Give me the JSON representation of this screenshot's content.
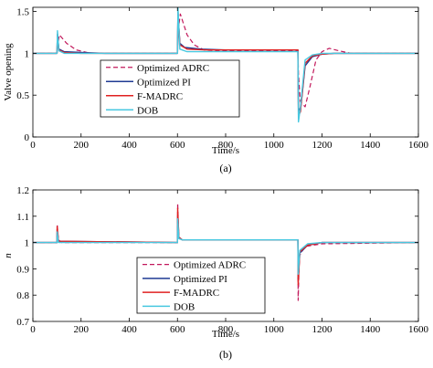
{
  "chart_data": [
    {
      "type": "line",
      "caption": "(a)",
      "xlabel": "Time/s",
      "ylabel": "Valve opening",
      "xlim": [
        0,
        1600
      ],
      "ylim": [
        0,
        1.55
      ],
      "xticks": [
        0,
        200,
        400,
        600,
        800,
        1000,
        1200,
        1400,
        1600
      ],
      "yticks": [
        0,
        0.5,
        1,
        1.5
      ],
      "ytick_labels": [
        "0",
        "0.5",
        "1",
        "1.5"
      ],
      "legend_position": "center",
      "series": [
        {
          "name": "Optimized ADRC",
          "color": "#c2185b",
          "dash": "5,3",
          "points": [
            [
              0,
              1
            ],
            [
              100,
              1
            ],
            [
              102,
              1.08
            ],
            [
              110,
              1.22
            ],
            [
              140,
              1.12
            ],
            [
              180,
              1.04
            ],
            [
              240,
              1.0
            ],
            [
              300,
              1.0
            ],
            [
              600,
              1.0
            ],
            [
              602,
              1.25
            ],
            [
              612,
              1.47
            ],
            [
              640,
              1.22
            ],
            [
              670,
              1.1
            ],
            [
              710,
              1.04
            ],
            [
              760,
              1.03
            ],
            [
              800,
              1.03
            ],
            [
              1000,
              1.03
            ],
            [
              1100,
              1.03
            ],
            [
              1102,
              0.75
            ],
            [
              1110,
              0.42
            ],
            [
              1130,
              0.36
            ],
            [
              1150,
              0.6
            ],
            [
              1175,
              0.92
            ],
            [
              1200,
              1.02
            ],
            [
              1230,
              1.06
            ],
            [
              1270,
              1.03
            ],
            [
              1320,
              1.0
            ],
            [
              1600,
              1.0
            ]
          ]
        },
        {
          "name": "Optimized PI",
          "color": "#1f3a93",
          "points": [
            [
              0,
              1
            ],
            [
              100,
              1
            ],
            [
              102,
              1.22
            ],
            [
              108,
              1.05
            ],
            [
              130,
              1.02
            ],
            [
              200,
              1.01
            ],
            [
              300,
              1.0
            ],
            [
              600,
              1.0
            ],
            [
              602,
              1.48
            ],
            [
              610,
              1.12
            ],
            [
              630,
              1.07
            ],
            [
              700,
              1.05
            ],
            [
              800,
              1.04
            ],
            [
              1100,
              1.04
            ],
            [
              1102,
              0.35
            ],
            [
              1110,
              0.3
            ],
            [
              1130,
              0.85
            ],
            [
              1160,
              0.96
            ],
            [
              1200,
              0.99
            ],
            [
              1250,
              1.0
            ],
            [
              1600,
              1.0
            ]
          ]
        },
        {
          "name": "F-MADRC",
          "color": "#e02020",
          "points": [
            [
              0,
              1
            ],
            [
              100,
              1
            ],
            [
              102,
              1.23
            ],
            [
              108,
              1.04
            ],
            [
              130,
              1.01
            ],
            [
              200,
              1.0
            ],
            [
              600,
              1.0
            ],
            [
              602,
              1.5
            ],
            [
              610,
              1.1
            ],
            [
              640,
              1.05
            ],
            [
              720,
              1.04
            ],
            [
              800,
              1.04
            ],
            [
              1100,
              1.04
            ],
            [
              1102,
              0.25
            ],
            [
              1110,
              0.3
            ],
            [
              1130,
              0.88
            ],
            [
              1160,
              0.97
            ],
            [
              1200,
              0.99
            ],
            [
              1250,
              1.0
            ],
            [
              1600,
              1.0
            ]
          ]
        },
        {
          "name": "DOB",
          "color": "#48c8e0",
          "points": [
            [
              0,
              1
            ],
            [
              100,
              1
            ],
            [
              102,
              1.27
            ],
            [
              108,
              1.03
            ],
            [
              130,
              1.0
            ],
            [
              600,
              1.0
            ],
            [
              602,
              1.55
            ],
            [
              610,
              1.05
            ],
            [
              640,
              1.02
            ],
            [
              800,
              1.02
            ],
            [
              1100,
              1.02
            ],
            [
              1102,
              0.18
            ],
            [
              1110,
              0.35
            ],
            [
              1130,
              0.92
            ],
            [
              1160,
              0.98
            ],
            [
              1200,
              1.0
            ],
            [
              1600,
              1.0
            ]
          ]
        }
      ]
    },
    {
      "type": "line",
      "caption": "(b)",
      "xlabel": "Time/s",
      "ylabel": "n",
      "xlim": [
        0,
        1600
      ],
      "ylim": [
        0.7,
        1.2
      ],
      "xticks": [
        0,
        200,
        400,
        600,
        800,
        1000,
        1200,
        1400,
        1600
      ],
      "yticks": [
        0.7,
        0.8,
        0.9,
        1,
        1.1,
        1.2
      ],
      "ytick_labels": [
        "0.7",
        "0.8",
        "0.9",
        "1",
        "1.1",
        "1.2"
      ],
      "legend_position": "center",
      "series": [
        {
          "name": "Optimized ADRC",
          "color": "#c2185b",
          "dash": "5,3",
          "points": [
            [
              0,
              1
            ],
            [
              100,
              1
            ],
            [
              101,
              1.07
            ],
            [
              106,
              1.01
            ],
            [
              120,
              1.0
            ],
            [
              600,
              1.0
            ],
            [
              601,
              1.15
            ],
            [
              606,
              1.02
            ],
            [
              620,
              1.01
            ],
            [
              700,
              1.01
            ],
            [
              1100,
              1.01
            ],
            [
              1101,
              0.78
            ],
            [
              1106,
              0.95
            ],
            [
              1130,
              0.985
            ],
            [
              1200,
              0.995
            ],
            [
              1600,
              1.0
            ]
          ]
        },
        {
          "name": "Optimized PI",
          "color": "#1f3a93",
          "points": [
            [
              0,
              1
            ],
            [
              100,
              1
            ],
            [
              101,
              1.05
            ],
            [
              106,
              1.005
            ],
            [
              600,
              1.0
            ],
            [
              601,
              1.1
            ],
            [
              606,
              1.02
            ],
            [
              620,
              1.01
            ],
            [
              700,
              1.01
            ],
            [
              1100,
              1.01
            ],
            [
              1101,
              0.86
            ],
            [
              1108,
              0.96
            ],
            [
              1140,
              0.99
            ],
            [
              1200,
              1.0
            ],
            [
              1600,
              1.0
            ]
          ]
        },
        {
          "name": "F-MADRC",
          "color": "#e02020",
          "points": [
            [
              0,
              1
            ],
            [
              100,
              1
            ],
            [
              101,
              1.06
            ],
            [
              106,
              1.005
            ],
            [
              600,
              1.0
            ],
            [
              601,
              1.13
            ],
            [
              606,
              1.02
            ],
            [
              620,
              1.01
            ],
            [
              700,
              1.01
            ],
            [
              1100,
              1.01
            ],
            [
              1101,
              0.84
            ],
            [
              1108,
              0.965
            ],
            [
              1140,
              0.99
            ],
            [
              1200,
              1.0
            ],
            [
              1600,
              1.0
            ]
          ]
        },
        {
          "name": "DOB",
          "color": "#48c8e0",
          "points": [
            [
              0,
              1
            ],
            [
              100,
              1
            ],
            [
              101,
              1.04
            ],
            [
              106,
              1.0
            ],
            [
              600,
              1.0
            ],
            [
              601,
              1.09
            ],
            [
              606,
              1.015
            ],
            [
              620,
              1.01
            ],
            [
              700,
              1.01
            ],
            [
              1100,
              1.01
            ],
            [
              1101,
              0.88
            ],
            [
              1108,
              0.97
            ],
            [
              1140,
              0.995
            ],
            [
              1200,
              1.0
            ],
            [
              1600,
              1.0
            ]
          ]
        }
      ]
    }
  ]
}
